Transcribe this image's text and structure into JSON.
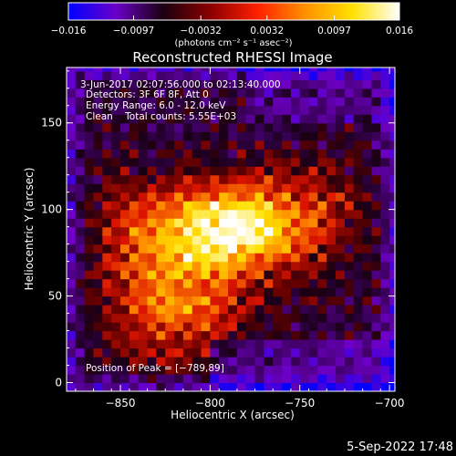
{
  "chart_data": {
    "type": "heatmap",
    "title": "Reconstructed RHESSI Image",
    "xlabel": "Heliocentric X (arcsec)",
    "ylabel": "Heliocentric Y (arcsec)",
    "xlim": [
      -880,
      -697
    ],
    "ylim": [
      -5,
      182
    ],
    "x_ticks": [
      -850,
      -800,
      -750,
      -700
    ],
    "x_tick_labels": [
      "−850",
      "−800",
      "−750",
      "−700"
    ],
    "y_ticks": [
      0,
      50,
      100,
      150
    ],
    "y_tick_labels": [
      "0",
      "50",
      "100",
      "150"
    ],
    "colorbar": {
      "min": -0.016,
      "max": 0.016,
      "ticks": [
        -0.016,
        -0.0097,
        -0.0032,
        0.0032,
        0.0097,
        0.016
      ],
      "tick_labels": [
        "−0.016",
        "−0.0097",
        "−0.0032",
        "0.0032",
        "0.0097",
        "0.016"
      ],
      "units": "(photons cm⁻² s⁻¹ asec⁻²)",
      "colors": [
        "#0000ff",
        "#6a00c8",
        "#1a0010",
        "#8a0000",
        "#ff2000",
        "#ff9000",
        "#ffe000",
        "#ffffff"
      ]
    },
    "annotations": {
      "time_range": "3-Jun-2017 02:07:56.000 to 02:13:40.000",
      "detectors": "Detectors: 3F 6F 8F, Att 0",
      "energy": "Energy Range: 6.0 - 12.0 keV",
      "clean": "Clean    Total counts: 5.55E+03",
      "peak": "Position of Peak = [−789,89]"
    },
    "peak": [
      -789,
      89
    ],
    "grid": false,
    "legend": "none"
  },
  "footer": {
    "date": "5-Sep-2022 17:48"
  }
}
